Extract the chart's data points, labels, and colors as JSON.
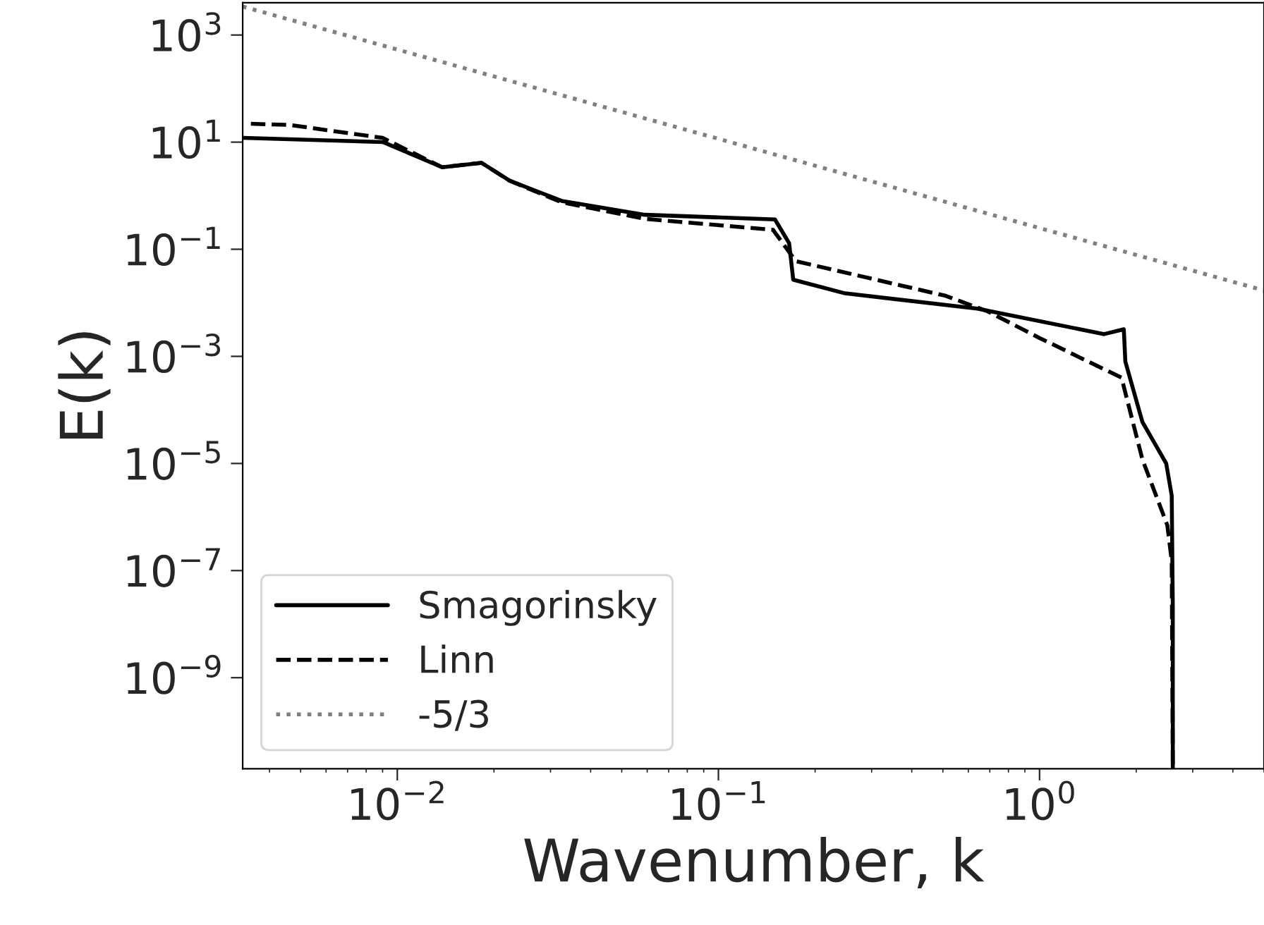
{
  "chart_data": {
    "type": "line",
    "xlabel": "Wavenumber, k",
    "ylabel": "E(k)",
    "log": "xy",
    "grid": false,
    "legend": "bottom left",
    "xlim": [
      0.0033,
      5
    ],
    "ylim": [
      2e-11,
      4000
    ],
    "xticks": [
      {
        "value": 0.01,
        "label": "10$^{−2}$"
      },
      {
        "value": 0.1,
        "label": "10$^{−1}$"
      },
      {
        "value": 1,
        "label": "10$^{0}$"
      }
    ],
    "yticks": [
      {
        "value": 1e-09,
        "label": "10$^{−9}$"
      },
      {
        "value": 1e-07,
        "label": "10$^{−7}$"
      },
      {
        "value": 1e-05,
        "label": "10$^{−5}$"
      },
      {
        "value": 0.001,
        "label": "10$^{−3}$"
      },
      {
        "value": 0.1,
        "label": "10$^{−1}$"
      },
      {
        "value": 10,
        "label": "10$^{1}$"
      },
      {
        "value": 1000,
        "label": "10$^{3}$"
      }
    ],
    "series": [
      {
        "name": "Smagorinsky",
        "color": "#000000",
        "line_style": "solid",
        "x": [
          0.0033,
          0.00904,
          0.0138,
          0.0183,
          0.0224,
          0.0325,
          0.059,
          0.15,
          0.166,
          0.171,
          0.248,
          0.64,
          1.59,
          1.83,
          1.85,
          2.09,
          2.48,
          2.58,
          2.6,
          2.6
        ],
        "values": [
          12,
          10,
          3.4,
          4.1,
          1.9,
          0.8,
          0.44,
          0.36,
          0.13,
          0.027,
          0.015,
          0.0078,
          0.0026,
          0.0032,
          0.0008,
          6e-05,
          1e-05,
          2.5e-06,
          2e-08,
          2e-11
        ]
      },
      {
        "name": "Linn",
        "color": "#000000",
        "line_style": "dashed",
        "x": [
          0.0035,
          0.0046,
          0.009,
          0.0138,
          0.0183,
          0.0224,
          0.0325,
          0.059,
          0.148,
          0.174,
          0.51,
          0.69,
          1.0,
          1.8,
          2.09,
          2.5,
          2.58,
          2.6
        ],
        "values": [
          22,
          21,
          12,
          3.4,
          4.1,
          1.9,
          0.75,
          0.37,
          0.23,
          0.06,
          0.0135,
          0.0069,
          0.0022,
          0.0004,
          1.2e-05,
          7e-07,
          1.5e-07,
          2e-11
        ]
      },
      {
        "name": "-5/3",
        "color": "#808080",
        "line_style": "dotted",
        "x": [
          0.0033,
          5
        ],
        "values": [
          3400,
          0.017
        ]
      }
    ]
  }
}
